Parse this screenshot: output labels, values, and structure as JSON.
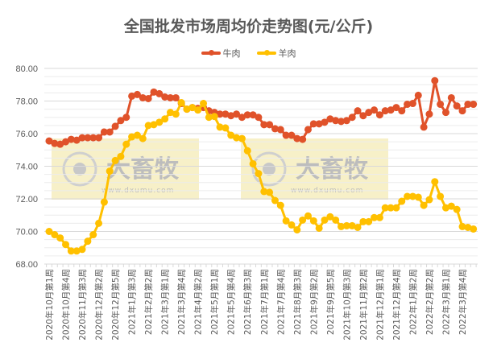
{
  "chart_data": {
    "type": "line",
    "title": "全国批发市场周均价走势图(元/公斤)",
    "xlabel": "",
    "ylabel": "",
    "ylim": [
      68,
      80
    ],
    "yticks": [
      "80.00",
      "78.00",
      "76.00",
      "74.00",
      "72.00",
      "70.00",
      "68.00"
    ],
    "grid": true,
    "legend_position": "top",
    "x_tick_labels": [
      "2020年10月第1周",
      "2020年10月第4周",
      "2020年11月第3周",
      "2020年12月第2周",
      "2020年12月第5周",
      "2021年1月第3周",
      "2021年2月第2周",
      "2021年3月第1周",
      "2021年3月第4周",
      "2021年4月第2周",
      "2021年5月第1周",
      "2021年5月第4周",
      "2021年6月第3周",
      "2021年7月第1周",
      "2021年7月第4周",
      "2021年8月第3周",
      "2021年9月第2周",
      "2021年9月第5周",
      "2021年10月第3周",
      "2021年11月第2周",
      "2021年12月第1周",
      "2021年12月第4周",
      "2022年1月第2周",
      "2022年2月第2周",
      "2022年3月第1周",
      "2022年3月第4周"
    ],
    "series": [
      {
        "name": "牛肉",
        "color": "#E0522A",
        "values": [
          75.55,
          75.4,
          75.35,
          75.5,
          75.65,
          75.6,
          75.75,
          75.75,
          75.75,
          75.75,
          76.1,
          76.1,
          76.45,
          76.8,
          77.0,
          78.3,
          78.4,
          78.2,
          78.15,
          78.55,
          78.45,
          78.25,
          78.2,
          78.2,
          77.85,
          77.5,
          77.6,
          77.55,
          77.6,
          77.4,
          77.3,
          77.2,
          77.2,
          77.1,
          77.2,
          77.0,
          77.15,
          77.15,
          77.0,
          76.55,
          76.55,
          76.3,
          76.25,
          75.9,
          75.9,
          75.7,
          75.65,
          76.25,
          76.6,
          76.6,
          76.7,
          76.9,
          76.8,
          76.75,
          76.8,
          77.0,
          77.4,
          77.1,
          77.3,
          77.45,
          77.15,
          77.4,
          77.45,
          77.6,
          77.4,
          77.8,
          77.85,
          78.35,
          76.4,
          77.2,
          79.25,
          77.8,
          77.3,
          78.2,
          77.7,
          77.4,
          77.8,
          77.8
        ]
      },
      {
        "name": "羊肉",
        "color": "#FFC000",
        "values": [
          70.0,
          69.8,
          69.6,
          69.2,
          68.8,
          68.8,
          68.9,
          69.4,
          69.8,
          70.5,
          71.8,
          73.7,
          74.35,
          74.6,
          75.35,
          75.8,
          75.9,
          75.7,
          76.5,
          76.55,
          76.7,
          76.9,
          77.3,
          77.2,
          77.9,
          77.5,
          77.6,
          77.45,
          77.85,
          77.0,
          77.05,
          76.4,
          76.35,
          75.9,
          75.75,
          75.7,
          74.95,
          74.15,
          73.55,
          72.45,
          72.4,
          71.9,
          71.6,
          70.65,
          70.4,
          70.1,
          70.7,
          70.95,
          70.65,
          70.2,
          70.7,
          70.9,
          70.7,
          70.3,
          70.35,
          70.35,
          70.25,
          70.6,
          70.6,
          70.85,
          70.85,
          71.45,
          71.45,
          71.45,
          71.85,
          72.15,
          72.15,
          72.1,
          71.6,
          71.95,
          73.05,
          72.15,
          71.45,
          71.55,
          71.35,
          70.3,
          70.25,
          70.15
        ]
      }
    ]
  },
  "title": "全国批发市场周均价走势图(元/公斤)",
  "legend": [
    {
      "label": "牛肉",
      "color": "#E0522A"
    },
    {
      "label": "羊肉",
      "color": "#FFC000"
    }
  ],
  "watermark": {
    "brand": "大畜牧",
    "url": "www.dxumu.com"
  }
}
